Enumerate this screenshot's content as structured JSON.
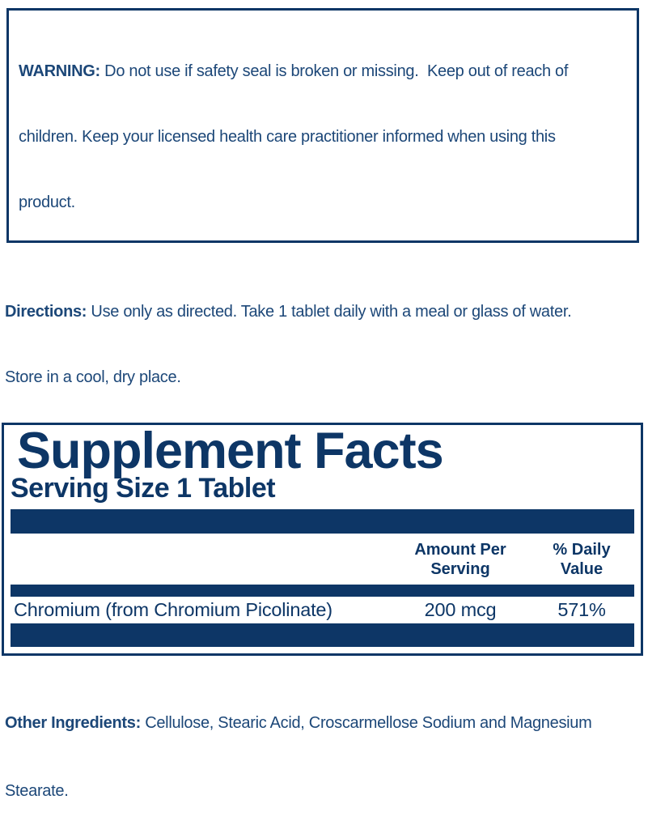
{
  "colors": {
    "navy": "#0d3666",
    "body_text": "#1c4778",
    "background": "#ffffff"
  },
  "warning": {
    "label": "WARNING:",
    "line1_rest": " Do not use if safety seal is broken or missing.  Keep out of reach of",
    "line2": "children. Keep your licensed health care practitioner informed when using this",
    "line3": "product."
  },
  "directions": {
    "label": "Directions:",
    "line1_rest": " Use only as directed. Take 1 tablet daily with a meal or glass of water.",
    "line2": "Store in a cool, dry place."
  },
  "supplement_facts": {
    "title": "Supplement Facts",
    "serving_size": "Serving Size 1 Tablet",
    "columns": {
      "amount_line1": "Amount Per",
      "amount_line2": "Serving",
      "daily_value_line1": "% Daily",
      "daily_value_line2": "Value"
    },
    "rows": [
      {
        "name": "Chromium (from Chromium Picolinate)",
        "amount": "200 mcg",
        "daily_value": "571%"
      }
    ]
  },
  "other_ingredients": {
    "label": "Other Ingredients:",
    "line1_rest": " Cellulose, Stearic Acid, Croscarmellose Sodium and Magnesium",
    "line2": "Stearate."
  }
}
